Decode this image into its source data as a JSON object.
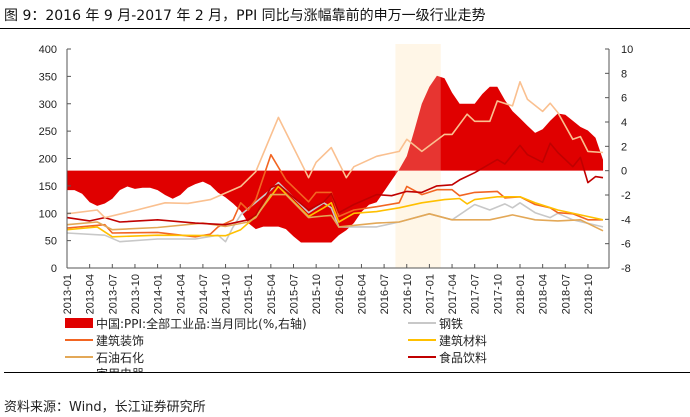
{
  "title": "图 9：2016 年 9 月-2017 年 2 月，PPI 同比与涨幅靠前的申万一级行业走势",
  "source": "资料来源：Wind，长江证券研究所",
  "chart_data": {
    "type": "line",
    "title": "",
    "highlight_range": [
      "2016-09",
      "2017-02"
    ],
    "highlight_color": "#FFF8EA",
    "x_ticks": [
      "2013-01",
      "2013-04",
      "2013-07",
      "2013-10",
      "2014-01",
      "2014-04",
      "2014-07",
      "2014-10",
      "2015-01",
      "2015-04",
      "2015-07",
      "2015-10",
      "2016-01",
      "2016-04",
      "2016-07",
      "2016-10",
      "2017-01",
      "2017-04",
      "2017-07",
      "2017-10",
      "2018-01",
      "2018-04",
      "2018-07",
      "2018-10"
    ],
    "y_left": {
      "lim": [
        0,
        400
      ],
      "ticks": [
        0,
        50,
        100,
        150,
        200,
        250,
        300,
        350,
        400
      ]
    },
    "y_right": {
      "lim": [
        -8,
        10
      ],
      "ticks": [
        -8,
        -6,
        -4,
        -2,
        0,
        2,
        4,
        6,
        8,
        10
      ]
    },
    "grid": false,
    "legend_placement": "bottom",
    "area_series": {
      "name": "中国:PPI:全部工业品:当月同比(%,右轴)",
      "color": "#E00000",
      "axis": "right",
      "start": "2013-01",
      "values": [
        -1.6,
        -1.6,
        -1.9,
        -2.6,
        -2.9,
        -2.7,
        -2.3,
        -1.6,
        -1.3,
        -1.5,
        -1.4,
        -1.4,
        -1.6,
        -2.0,
        -2.3,
        -2.0,
        -1.4,
        -1.1,
        -0.9,
        -1.2,
        -1.8,
        -2.2,
        -2.7,
        -3.3,
        -4.3,
        -4.8,
        -4.6,
        -4.6,
        -4.6,
        -4.8,
        -5.4,
        -5.9,
        -5.9,
        -5.9,
        -5.9,
        -5.9,
        -5.3,
        -4.9,
        -4.3,
        -3.4,
        -2.8,
        -2.6,
        -1.7,
        -0.8,
        0.1,
        1.2,
        3.3,
        5.5,
        6.9,
        7.8,
        7.6,
        6.4,
        5.5,
        5.5,
        5.5,
        6.3,
        6.9,
        6.9,
        5.8,
        4.9,
        4.3,
        3.7,
        3.1,
        3.4,
        4.1,
        4.7,
        4.6,
        4.1,
        3.6,
        3.3,
        2.7,
        0.9
      ]
    },
    "series": [
      {
        "name": "钢铁",
        "color": "#C8C8C8",
        "points": [
          [
            "2013-01",
            64
          ],
          [
            "2013-06",
            60
          ],
          [
            "2013-08",
            48
          ],
          [
            "2014-01",
            53
          ],
          [
            "2014-06",
            53
          ],
          [
            "2014-10",
            48
          ],
          [
            "2014-09",
            60
          ],
          [
            "2014-11",
            75
          ],
          [
            "2014-12",
            97
          ],
          [
            "2015-04",
            143
          ],
          [
            "2015-05",
            156
          ],
          [
            "2015-09",
            101
          ],
          [
            "2015-11",
            119
          ],
          [
            "2015-12",
            110
          ],
          [
            "2016-01",
            75
          ],
          [
            "2016-06",
            75
          ],
          [
            "2016-09",
            84
          ],
          [
            "2017-01",
            99
          ],
          [
            "2017-04",
            88
          ],
          [
            "2017-07",
            116
          ],
          [
            "2017-09",
            106
          ],
          [
            "2017-11",
            117
          ],
          [
            "2017-12",
            110
          ],
          [
            "2018-01",
            119
          ],
          [
            "2018-03",
            101
          ],
          [
            "2018-05",
            92
          ],
          [
            "2018-06",
            100
          ],
          [
            "2018-08",
            88
          ],
          [
            "2018-12",
            75
          ]
        ]
      },
      {
        "name": "建筑装饰",
        "color": "#F26522",
        "points": [
          [
            "2013-01",
            73
          ],
          [
            "2013-06",
            79
          ],
          [
            "2013-07",
            64
          ],
          [
            "2014-01",
            65
          ],
          [
            "2014-06",
            57
          ],
          [
            "2014-08",
            62
          ],
          [
            "2014-09",
            75
          ],
          [
            "2014-11",
            88
          ],
          [
            "2014-12",
            119
          ],
          [
            "2015-01",
            106
          ],
          [
            "2015-02",
            125
          ],
          [
            "2015-04",
            207
          ],
          [
            "2015-06",
            161
          ],
          [
            "2015-09",
            121
          ],
          [
            "2015-10",
            138
          ],
          [
            "2015-12",
            138
          ],
          [
            "2016-01",
            94
          ],
          [
            "2016-03",
            106
          ],
          [
            "2016-06",
            112
          ],
          [
            "2016-09",
            119
          ],
          [
            "2016-10",
            149
          ],
          [
            "2016-12",
            134
          ],
          [
            "2017-02",
            143
          ],
          [
            "2017-04",
            143
          ],
          [
            "2017-05",
            132
          ],
          [
            "2017-07",
            138
          ],
          [
            "2017-10",
            140
          ],
          [
            "2017-11",
            128
          ],
          [
            "2018-01",
            130
          ],
          [
            "2018-03",
            116
          ],
          [
            "2018-05",
            110
          ],
          [
            "2018-06",
            101
          ],
          [
            "2018-08",
            99
          ],
          [
            "2018-10",
            88
          ],
          [
            "2018-12",
            88
          ]
        ]
      },
      {
        "name": "建筑材料",
        "color": "#FFC000",
        "points": [
          [
            "2013-01",
            70
          ],
          [
            "2013-05",
            75
          ],
          [
            "2013-07",
            57
          ],
          [
            "2014-01",
            60
          ],
          [
            "2014-10",
            59
          ],
          [
            "2014-12",
            70
          ],
          [
            "2015-02",
            94
          ],
          [
            "2015-05",
            149
          ],
          [
            "2015-09",
            94
          ],
          [
            "2015-11",
            110
          ],
          [
            "2015-12",
            119
          ],
          [
            "2016-01",
            84
          ],
          [
            "2016-03",
            100
          ],
          [
            "2016-06",
            103
          ],
          [
            "2016-09",
            110
          ],
          [
            "2016-12",
            119
          ],
          [
            "2017-03",
            125
          ],
          [
            "2017-05",
            127
          ],
          [
            "2017-06",
            117
          ],
          [
            "2017-07",
            125
          ],
          [
            "2017-10",
            130
          ],
          [
            "2018-01",
            130
          ],
          [
            "2018-03",
            119
          ],
          [
            "2018-06",
            106
          ],
          [
            "2018-09",
            97
          ],
          [
            "2018-12",
            88
          ]
        ]
      },
      {
        "name": "石油石化",
        "color": "#E3A857",
        "points": [
          [
            "2013-01",
            79
          ],
          [
            "2013-05",
            84
          ],
          [
            "2013-07",
            70
          ],
          [
            "2014-01",
            74
          ],
          [
            "2014-07",
            82
          ],
          [
            "2014-10",
            76
          ],
          [
            "2015-01",
            84
          ],
          [
            "2015-02",
            92
          ],
          [
            "2015-04",
            134
          ],
          [
            "2015-06",
            134
          ],
          [
            "2015-09",
            92
          ],
          [
            "2015-11",
            95
          ],
          [
            "2015-12",
            96
          ],
          [
            "2016-01",
            75
          ],
          [
            "2016-06",
            82
          ],
          [
            "2016-09",
            84
          ],
          [
            "2017-01",
            99
          ],
          [
            "2017-04",
            88
          ],
          [
            "2017-09",
            88
          ],
          [
            "2017-12",
            97
          ],
          [
            "2018-03",
            88
          ],
          [
            "2018-06",
            86
          ],
          [
            "2018-09",
            88
          ],
          [
            "2018-12",
            68
          ]
        ]
      },
      {
        "name": "食品饮料",
        "color": "#C00000",
        "points": [
          [
            "2013-01",
            92
          ],
          [
            "2013-04",
            86
          ],
          [
            "2013-06",
            92
          ],
          [
            "2013-08",
            84
          ],
          [
            "2014-01",
            88
          ],
          [
            "2014-06",
            82
          ],
          [
            "2014-10",
            79
          ],
          [
            "2015-01",
            88
          ],
          [
            "2015-02",
            97
          ],
          [
            "2015-04",
            147
          ],
          [
            "2015-05",
            152
          ],
          [
            "2015-09",
            106
          ],
          [
            "2015-11",
            121
          ],
          [
            "2015-12",
            136
          ],
          [
            "2016-01",
            101
          ],
          [
            "2016-03",
            116
          ],
          [
            "2016-06",
            134
          ],
          [
            "2016-08",
            132
          ],
          [
            "2016-10",
            140
          ],
          [
            "2016-12",
            138
          ],
          [
            "2017-02",
            150
          ],
          [
            "2017-04",
            152
          ],
          [
            "2017-05",
            161
          ],
          [
            "2017-07",
            174
          ],
          [
            "2017-10",
            198
          ],
          [
            "2017-11",
            190
          ],
          [
            "2018-01",
            224
          ],
          [
            "2018-02",
            207
          ],
          [
            "2018-04",
            193
          ],
          [
            "2018-05",
            228
          ],
          [
            "2018-06",
            211
          ],
          [
            "2018-08",
            185
          ],
          [
            "2018-09",
            202
          ],
          [
            "2018-10",
            156
          ],
          [
            "2018-11",
            167
          ],
          [
            "2018-12",
            165
          ]
        ]
      },
      {
        "name": "家用电器",
        "color": "#FAC090",
        "points": [
          [
            "2013-01",
            99
          ],
          [
            "2013-05",
            106
          ],
          [
            "2013-06",
            92
          ],
          [
            "2013-10",
            105
          ],
          [
            "2014-02",
            119
          ],
          [
            "2014-05",
            118
          ],
          [
            "2014-08",
            125
          ],
          [
            "2014-12",
            149
          ],
          [
            "2015-02",
            176
          ],
          [
            "2015-05",
            275
          ],
          [
            "2015-09",
            165
          ],
          [
            "2015-10",
            193
          ],
          [
            "2015-12",
            220
          ],
          [
            "2016-02",
            165
          ],
          [
            "2016-03",
            185
          ],
          [
            "2016-06",
            204
          ],
          [
            "2016-09",
            213
          ],
          [
            "2016-10",
            235
          ],
          [
            "2016-12",
            213
          ],
          [
            "2017-03",
            244
          ],
          [
            "2017-04",
            244
          ],
          [
            "2017-06",
            281
          ],
          [
            "2017-07",
            268
          ],
          [
            "2017-09",
            268
          ],
          [
            "2017-10",
            305
          ],
          [
            "2017-12",
            296
          ],
          [
            "2018-01",
            340
          ],
          [
            "2018-02",
            308
          ],
          [
            "2018-04",
            286
          ],
          [
            "2018-05",
            301
          ],
          [
            "2018-06",
            284
          ],
          [
            "2018-08",
            235
          ],
          [
            "2018-09",
            240
          ],
          [
            "2018-10",
            213
          ],
          [
            "2018-12",
            211
          ]
        ]
      }
    ]
  }
}
